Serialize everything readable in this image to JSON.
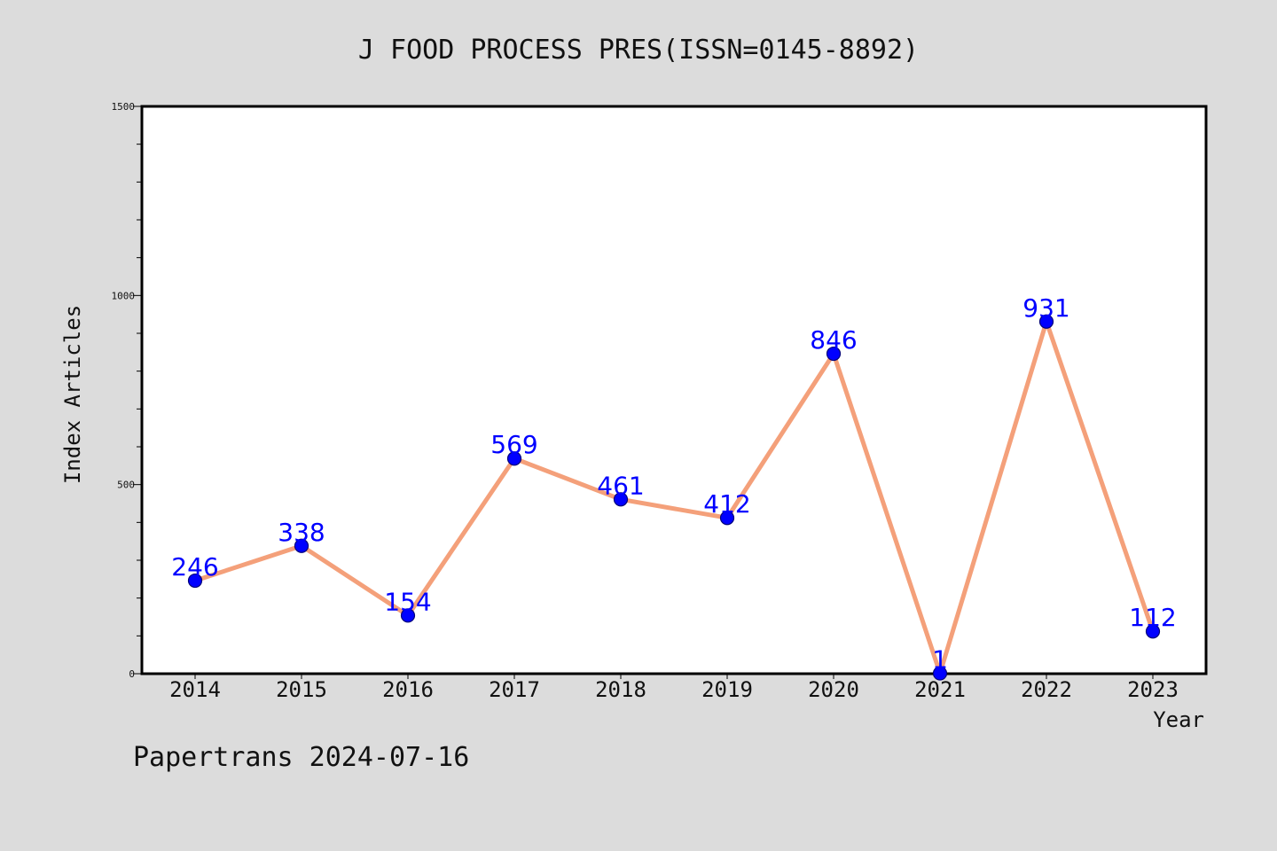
{
  "chart_data": {
    "type": "line",
    "title": "J FOOD PROCESS PRES(ISSN=0145-8892)",
    "xlabel": "Year",
    "ylabel": "Index Articles",
    "categories": [
      "2014",
      "2015",
      "2016",
      "2017",
      "2018",
      "2019",
      "2020",
      "2021",
      "2022",
      "2023"
    ],
    "series": [
      {
        "values": [
          246,
          338,
          154,
          569,
          461,
          412,
          846,
          1,
          931,
          112
        ]
      }
    ],
    "data_labels": [
      "246",
      "338",
      "154",
      "569",
      "461",
      "412",
      "846",
      "1",
      "931",
      "112"
    ],
    "ylim": [
      0,
      1500
    ],
    "yticks": [
      0,
      500,
      1000,
      1500
    ],
    "ytick_labels": [
      "0",
      "500",
      "1000",
      "1500"
    ],
    "grid": false,
    "line_color": "#f4a07a",
    "marker_color": "#0000ff",
    "label_color": "#0000ff",
    "plot_background": "#ffffff",
    "page_background": "#dcdcdc"
  },
  "footer": {
    "text": "Papertrans 2024-07-16"
  }
}
